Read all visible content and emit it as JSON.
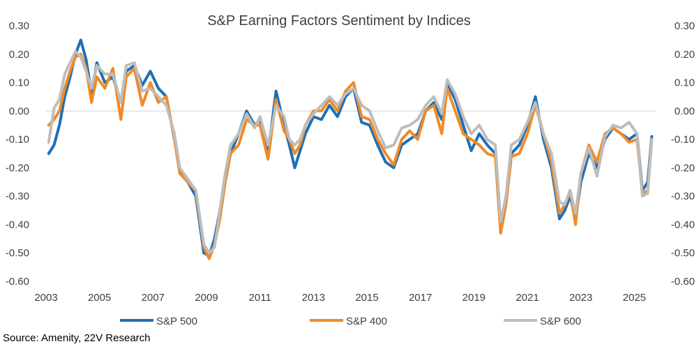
{
  "chart_data": {
    "type": "line",
    "title": "S&P Earning Factors Sentiment by Indices",
    "source": "Source: Amenity, 22V Research",
    "xlabel": "",
    "ylabel": "",
    "xlim": [
      2003.0,
      2025.8
    ],
    "ylim": [
      -0.6,
      0.3
    ],
    "x_ticks": [
      2003,
      2005,
      2007,
      2009,
      2011,
      2013,
      2015,
      2017,
      2019,
      2021,
      2023,
      2025
    ],
    "x_tick_labels": [
      "2003",
      "2005",
      "2007",
      "2009",
      "2011",
      "2013",
      "2015",
      "2017",
      "2019",
      "2021",
      "2023",
      "2025"
    ],
    "y_ticks": [
      0.3,
      0.2,
      0.1,
      0.0,
      -0.1,
      -0.2,
      -0.3,
      -0.4,
      -0.5,
      -0.6
    ],
    "y_tick_labels": [
      "0.30",
      "0.20",
      "0.10",
      "0.00",
      "-0.10",
      "-0.20",
      "-0.30",
      "-0.40",
      "-0.50",
      "-0.60"
    ],
    "secondary_y_axis": true,
    "zero_line": true,
    "grid": false,
    "legend_position": "bottom",
    "series": [
      {
        "name": "S&P 500",
        "color": "#1f6fb5",
        "x": [
          2003.1,
          2003.3,
          2003.5,
          2003.7,
          2003.9,
          2004.1,
          2004.3,
          2004.5,
          2004.7,
          2004.9,
          2005.2,
          2005.5,
          2005.8,
          2006.0,
          2006.3,
          2006.6,
          2006.9,
          2007.2,
          2007.5,
          2007.8,
          2008.0,
          2008.3,
          2008.6,
          2008.9,
          2009.1,
          2009.3,
          2009.5,
          2009.7,
          2009.9,
          2010.2,
          2010.5,
          2010.8,
          2011.0,
          2011.3,
          2011.6,
          2011.9,
          2012.1,
          2012.3,
          2012.5,
          2012.7,
          2013.0,
          2013.3,
          2013.6,
          2013.9,
          2014.2,
          2014.5,
          2014.8,
          2015.1,
          2015.4,
          2015.7,
          2016.0,
          2016.3,
          2016.6,
          2016.9,
          2017.2,
          2017.5,
          2017.8,
          2018.0,
          2018.3,
          2018.6,
          2018.9,
          2019.2,
          2019.5,
          2019.8,
          2020.0,
          2020.2,
          2020.4,
          2020.7,
          2021.0,
          2021.3,
          2021.6,
          2021.9,
          2022.2,
          2022.4,
          2022.6,
          2022.8,
          2023.0,
          2023.3,
          2023.6,
          2023.9,
          2024.2,
          2024.5,
          2024.8,
          2025.1,
          2025.3,
          2025.5,
          2025.65
        ],
        "values": [
          -0.15,
          -0.12,
          -0.05,
          0.05,
          0.12,
          0.2,
          0.25,
          0.18,
          0.06,
          0.17,
          0.1,
          0.12,
          0.03,
          0.14,
          0.16,
          0.09,
          0.14,
          0.08,
          0.05,
          -0.1,
          -0.2,
          -0.25,
          -0.3,
          -0.5,
          -0.51,
          -0.45,
          -0.35,
          -0.25,
          -0.15,
          -0.08,
          0.0,
          -0.05,
          -0.03,
          -0.15,
          0.07,
          -0.05,
          -0.12,
          -0.2,
          -0.14,
          -0.08,
          -0.02,
          -0.03,
          0.02,
          -0.02,
          0.05,
          0.08,
          -0.04,
          -0.05,
          -0.12,
          -0.18,
          -0.2,
          -0.12,
          -0.1,
          -0.08,
          0.0,
          0.03,
          -0.03,
          0.1,
          0.04,
          -0.05,
          -0.14,
          -0.08,
          -0.12,
          -0.15,
          -0.4,
          -0.3,
          -0.15,
          -0.12,
          -0.05,
          0.05,
          -0.1,
          -0.2,
          -0.38,
          -0.35,
          -0.3,
          -0.38,
          -0.25,
          -0.15,
          -0.2,
          -0.1,
          -0.06,
          -0.08,
          -0.1,
          -0.08,
          -0.28,
          -0.25,
          -0.09
        ]
      },
      {
        "name": "S&P 400",
        "color": "#f08a28",
        "x": [
          2003.1,
          2003.3,
          2003.5,
          2003.7,
          2003.9,
          2004.1,
          2004.3,
          2004.5,
          2004.7,
          2004.9,
          2005.2,
          2005.5,
          2005.8,
          2006.0,
          2006.3,
          2006.6,
          2006.9,
          2007.2,
          2007.5,
          2007.8,
          2008.0,
          2008.3,
          2008.6,
          2008.9,
          2009.1,
          2009.3,
          2009.5,
          2009.7,
          2009.9,
          2010.2,
          2010.5,
          2010.8,
          2011.0,
          2011.3,
          2011.6,
          2011.9,
          2012.1,
          2012.3,
          2012.5,
          2012.7,
          2013.0,
          2013.3,
          2013.6,
          2013.9,
          2014.2,
          2014.5,
          2014.8,
          2015.1,
          2015.4,
          2015.7,
          2016.0,
          2016.3,
          2016.6,
          2016.9,
          2017.2,
          2017.5,
          2017.8,
          2018.0,
          2018.3,
          2018.6,
          2018.9,
          2019.2,
          2019.5,
          2019.8,
          2020.0,
          2020.2,
          2020.4,
          2020.7,
          2021.0,
          2021.3,
          2021.6,
          2021.9,
          2022.2,
          2022.4,
          2022.6,
          2022.8,
          2023.0,
          2023.3,
          2023.6,
          2023.9,
          2024.2,
          2024.5,
          2024.8,
          2025.1,
          2025.3,
          2025.5,
          2025.65
        ],
        "values": [
          -0.05,
          -0.03,
          0.0,
          0.08,
          0.14,
          0.19,
          0.2,
          0.15,
          0.03,
          0.12,
          0.08,
          0.15,
          -0.03,
          0.12,
          0.15,
          0.02,
          0.1,
          0.03,
          0.05,
          -0.1,
          -0.22,
          -0.25,
          -0.28,
          -0.48,
          -0.52,
          -0.47,
          -0.38,
          -0.25,
          -0.15,
          -0.12,
          -0.03,
          -0.05,
          -0.05,
          -0.17,
          0.04,
          -0.07,
          -0.1,
          -0.15,
          -0.12,
          -0.05,
          0.0,
          0.0,
          0.04,
          0.0,
          0.07,
          0.1,
          -0.02,
          -0.03,
          -0.1,
          -0.15,
          -0.19,
          -0.1,
          -0.07,
          -0.1,
          0.0,
          0.02,
          -0.08,
          0.08,
          0.0,
          -0.08,
          -0.1,
          -0.12,
          -0.15,
          -0.16,
          -0.43,
          -0.33,
          -0.16,
          -0.15,
          -0.08,
          0.02,
          -0.08,
          -0.18,
          -0.36,
          -0.33,
          -0.28,
          -0.4,
          -0.22,
          -0.12,
          -0.18,
          -0.08,
          -0.06,
          -0.08,
          -0.11,
          -0.1,
          -0.29,
          -0.28,
          -0.1
        ]
      },
      {
        "name": "S&P 600",
        "color": "#bdbdbd",
        "x": [
          2003.1,
          2003.3,
          2003.5,
          2003.7,
          2003.9,
          2004.1,
          2004.3,
          2004.5,
          2004.7,
          2004.9,
          2005.2,
          2005.5,
          2005.8,
          2006.0,
          2006.3,
          2006.6,
          2006.9,
          2007.2,
          2007.5,
          2007.8,
          2008.0,
          2008.3,
          2008.6,
          2008.9,
          2009.1,
          2009.3,
          2009.5,
          2009.7,
          2009.9,
          2010.2,
          2010.5,
          2010.8,
          2011.0,
          2011.3,
          2011.6,
          2011.9,
          2012.1,
          2012.3,
          2012.5,
          2012.7,
          2013.0,
          2013.3,
          2013.6,
          2013.9,
          2014.2,
          2014.5,
          2014.8,
          2015.1,
          2015.4,
          2015.7,
          2016.0,
          2016.3,
          2016.6,
          2016.9,
          2017.2,
          2017.5,
          2017.8,
          2018.0,
          2018.3,
          2018.6,
          2018.9,
          2019.2,
          2019.5,
          2019.8,
          2020.0,
          2020.2,
          2020.4,
          2020.7,
          2021.0,
          2021.3,
          2021.6,
          2021.9,
          2022.2,
          2022.4,
          2022.6,
          2022.8,
          2023.0,
          2023.3,
          2023.6,
          2023.9,
          2024.2,
          2024.5,
          2024.8,
          2025.1,
          2025.3,
          2025.5,
          2025.65
        ],
        "values": [
          -0.11,
          0.01,
          0.04,
          0.13,
          0.17,
          0.21,
          0.19,
          0.14,
          0.08,
          0.16,
          0.13,
          0.13,
          0.03,
          0.16,
          0.17,
          0.07,
          0.08,
          0.05,
          0.02,
          -0.08,
          -0.2,
          -0.24,
          -0.28,
          -0.47,
          -0.5,
          -0.48,
          -0.35,
          -0.22,
          -0.12,
          -0.08,
          -0.01,
          -0.06,
          -0.02,
          -0.12,
          0.02,
          -0.02,
          -0.1,
          -0.12,
          -0.1,
          -0.05,
          -0.01,
          0.02,
          0.05,
          0.02,
          0.06,
          0.08,
          0.02,
          0.0,
          -0.07,
          -0.13,
          -0.12,
          -0.06,
          -0.05,
          -0.03,
          0.02,
          0.05,
          -0.01,
          0.11,
          0.06,
          -0.02,
          -0.08,
          -0.05,
          -0.1,
          -0.12,
          -0.39,
          -0.3,
          -0.12,
          -0.1,
          -0.04,
          0.03,
          -0.08,
          -0.15,
          -0.32,
          -0.33,
          -0.28,
          -0.36,
          -0.22,
          -0.13,
          -0.23,
          -0.09,
          -0.05,
          -0.06,
          -0.04,
          -0.08,
          -0.3,
          -0.29,
          -0.1
        ]
      }
    ]
  }
}
